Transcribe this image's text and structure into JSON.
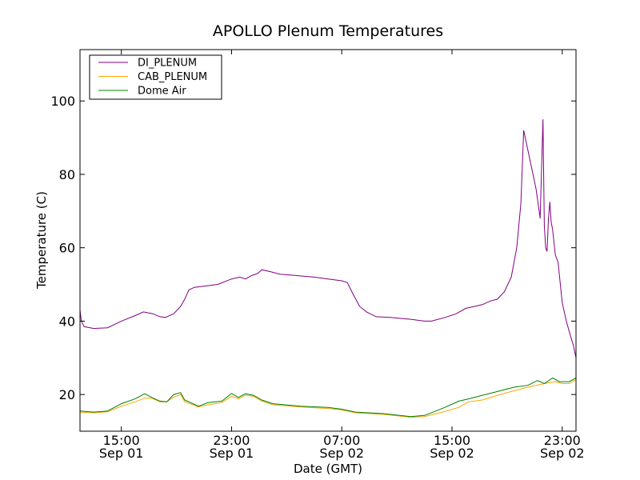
{
  "chart_data": {
    "type": "line",
    "title": "APOLLO Plenum Temperatures",
    "xlabel": "Date (GMT)",
    "ylabel": "Temperature (C)",
    "x_unit": "hours since 2012-09-01 12:00 GMT",
    "xlim": [
      0,
      36
    ],
    "ylim": [
      10,
      114
    ],
    "yticks": [
      20,
      40,
      60,
      80,
      100
    ],
    "xticks": [
      {
        "x": 3,
        "time": "15:00",
        "date": "Sep 01"
      },
      {
        "x": 11,
        "time": "23:00",
        "date": "Sep 01"
      },
      {
        "x": 19,
        "time": "07:00",
        "date": "Sep 02"
      },
      {
        "x": 27,
        "time": "15:00",
        "date": "Sep 02"
      },
      {
        "x": 35,
        "time": "23:00",
        "date": "Sep 02"
      }
    ],
    "grid": false,
    "legend": {
      "position": "top-left"
    },
    "series": [
      {
        "name": "DI_PLENUM",
        "color": "#800080",
        "points": [
          [
            0,
            43
          ],
          [
            0.1,
            40
          ],
          [
            0.3,
            38.5
          ],
          [
            1,
            38
          ],
          [
            2,
            38.2
          ],
          [
            3,
            40
          ],
          [
            4,
            41.5
          ],
          [
            4.6,
            42.5
          ],
          [
            5.3,
            42
          ],
          [
            5.8,
            41.2
          ],
          [
            6.2,
            41
          ],
          [
            6.8,
            42
          ],
          [
            7.3,
            44
          ],
          [
            7.6,
            46
          ],
          [
            7.9,
            48.5
          ],
          [
            8.3,
            49.2
          ],
          [
            9,
            49.5
          ],
          [
            10,
            50
          ],
          [
            11,
            51.5
          ],
          [
            11.6,
            52
          ],
          [
            12,
            51.5
          ],
          [
            12.5,
            52.5
          ],
          [
            12.9,
            53
          ],
          [
            13.2,
            54
          ],
          [
            13.8,
            53.5
          ],
          [
            14.5,
            52.8
          ],
          [
            15.5,
            52.5
          ],
          [
            17,
            52
          ],
          [
            18,
            51.5
          ],
          [
            19,
            51
          ],
          [
            19.4,
            50.5
          ],
          [
            19.8,
            47.5
          ],
          [
            20.3,
            44
          ],
          [
            20.8,
            42.5
          ],
          [
            21.5,
            41.2
          ],
          [
            22.5,
            41
          ],
          [
            24,
            40.5
          ],
          [
            25,
            40
          ],
          [
            25.5,
            40
          ],
          [
            26.5,
            41
          ],
          [
            27.3,
            42
          ],
          [
            28,
            43.5
          ],
          [
            28.6,
            44
          ],
          [
            29.2,
            44.5
          ],
          [
            29.8,
            45.5
          ],
          [
            30.3,
            46
          ],
          [
            30.8,
            48
          ],
          [
            31.3,
            52
          ],
          [
            31.7,
            60
          ],
          [
            32,
            72
          ],
          [
            32.2,
            92
          ],
          [
            32.6,
            85
          ],
          [
            33.1,
            76
          ],
          [
            33.4,
            68
          ],
          [
            33.6,
            95
          ],
          [
            33.7,
            66
          ],
          [
            33.8,
            60
          ],
          [
            33.9,
            59
          ],
          [
            34,
            68
          ],
          [
            34.1,
            72.5
          ],
          [
            34.2,
            67
          ],
          [
            34.3,
            65
          ],
          [
            34.5,
            58
          ],
          [
            34.7,
            56
          ],
          [
            35,
            45
          ],
          [
            35.3,
            40
          ],
          [
            35.6,
            36
          ],
          [
            35.8,
            33.5
          ],
          [
            36,
            30
          ]
        ]
      },
      {
        "name": "CAB_PLENUM",
        "color": "#ffa500",
        "points": [
          [
            0,
            15.2
          ],
          [
            1,
            15
          ],
          [
            2,
            15.3
          ],
          [
            3,
            16.8
          ],
          [
            4,
            18
          ],
          [
            4.7,
            19
          ],
          [
            5.2,
            19
          ],
          [
            5.8,
            18
          ],
          [
            6.3,
            18
          ],
          [
            6.8,
            19.3
          ],
          [
            7.3,
            20
          ],
          [
            7.6,
            18
          ],
          [
            8.2,
            17.2
          ],
          [
            8.6,
            16.6
          ],
          [
            9.3,
            17.2
          ],
          [
            10.3,
            17.8
          ],
          [
            11,
            19.5
          ],
          [
            11.5,
            18.8
          ],
          [
            12,
            19.8
          ],
          [
            12.6,
            19.5
          ],
          [
            13.2,
            18.2
          ],
          [
            14,
            17.2
          ],
          [
            16,
            16.6
          ],
          [
            18,
            16.2
          ],
          [
            19,
            15.8
          ],
          [
            20,
            15
          ],
          [
            22,
            14.6
          ],
          [
            24,
            13.8
          ],
          [
            25,
            14
          ],
          [
            26.3,
            15.2
          ],
          [
            27.5,
            16.5
          ],
          [
            28.2,
            18
          ],
          [
            29.2,
            18.5
          ],
          [
            30.5,
            20
          ],
          [
            31.5,
            21
          ],
          [
            32.5,
            22
          ],
          [
            33.5,
            22.8
          ],
          [
            34,
            23.2
          ],
          [
            34.5,
            23.5
          ],
          [
            35,
            23
          ],
          [
            35.5,
            23
          ],
          [
            36,
            24
          ]
        ]
      },
      {
        "name": "Dome Air",
        "color": "#008000",
        "points": [
          [
            0,
            15.5
          ],
          [
            1,
            15.2
          ],
          [
            2,
            15.5
          ],
          [
            3,
            17.5
          ],
          [
            4,
            18.8
          ],
          [
            4.7,
            20.2
          ],
          [
            5.2,
            19.2
          ],
          [
            5.8,
            18.2
          ],
          [
            6.3,
            18
          ],
          [
            6.8,
            20
          ],
          [
            7.3,
            20.5
          ],
          [
            7.6,
            18.5
          ],
          [
            8.2,
            17.5
          ],
          [
            8.6,
            16.8
          ],
          [
            9.3,
            17.8
          ],
          [
            10.3,
            18.2
          ],
          [
            11,
            20.3
          ],
          [
            11.5,
            19.2
          ],
          [
            12,
            20.2
          ],
          [
            12.6,
            19.8
          ],
          [
            13.2,
            18.5
          ],
          [
            14,
            17.5
          ],
          [
            16,
            16.8
          ],
          [
            18,
            16.5
          ],
          [
            19,
            16
          ],
          [
            20,
            15.2
          ],
          [
            22,
            14.8
          ],
          [
            24,
            14
          ],
          [
            25,
            14.3
          ],
          [
            26.3,
            16.2
          ],
          [
            27.5,
            18.2
          ],
          [
            28.2,
            18.8
          ],
          [
            29.2,
            19.8
          ],
          [
            30.5,
            21
          ],
          [
            31.5,
            22
          ],
          [
            32.5,
            22.5
          ],
          [
            33.2,
            23.8
          ],
          [
            33.7,
            23
          ],
          [
            34.3,
            24.5
          ],
          [
            34.8,
            23.5
          ],
          [
            35.5,
            23.5
          ],
          [
            36,
            24.5
          ]
        ]
      }
    ]
  }
}
